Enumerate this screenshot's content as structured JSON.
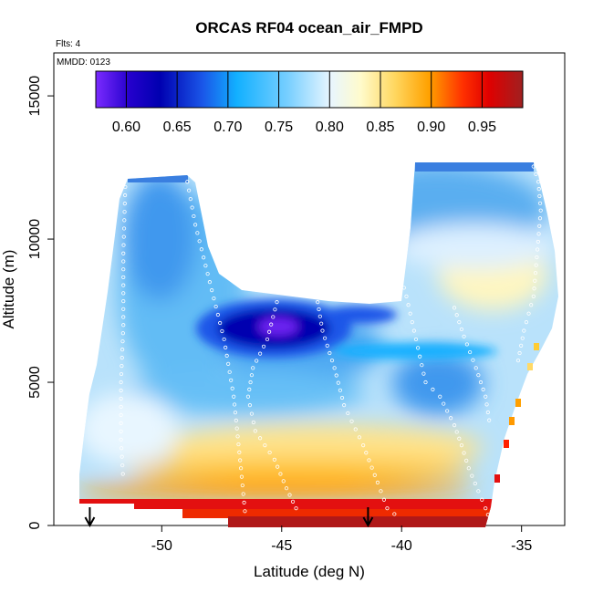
{
  "chart_data": {
    "type": "heatmap",
    "title": "ORCAS RF04 ocean_air_FMPD",
    "annotations": [
      "Flts: 4",
      "MMDD: 0123"
    ],
    "xlabel": "Latitude (deg N)",
    "ylabel": "Altitude (m)",
    "xlim": [
      -54.5,
      -33.2
    ],
    "ylim": [
      0,
      16500
    ],
    "x_ticks": [
      -50,
      -45,
      -40,
      -35
    ],
    "y_ticks": [
      0,
      5000,
      10000,
      15000
    ],
    "colorbar": {
      "range": [
        0.57,
        0.99
      ],
      "ticks": [
        0.6,
        0.65,
        0.7,
        0.75,
        0.8,
        0.85,
        0.9,
        0.95
      ],
      "tick_labels": [
        "0.60",
        "0.65",
        "0.70",
        "0.75",
        "0.80",
        "0.85",
        "0.90",
        "0.95"
      ]
    },
    "arrows_lat": [
      -53.0,
      -41.4
    ],
    "flight_track_profiles": [
      {
        "lat": [
          -51.5,
          -51.6,
          -51.6,
          -51.7,
          -51.7,
          -51.6
        ],
        "alt": [
          12400,
          9500,
          7000,
          5000,
          3000,
          1500
        ]
      },
      {
        "lat": [
          -49.0,
          -48.6,
          -48.0,
          -47.4,
          -47.0,
          -46.7,
          -46.5
        ],
        "alt": [
          12300,
          10500,
          8500,
          6500,
          4500,
          2000,
          200
        ]
      },
      {
        "lat": [
          -45.2,
          -45.6,
          -46.2,
          -46.4,
          -46.1,
          -45.3,
          -44.8,
          -44.4,
          -44.6
        ],
        "alt": [
          7800,
          6500,
          5500,
          4500,
          3300,
          2300,
          1300,
          600,
          300
        ]
      },
      {
        "lat": [
          -43.5,
          -43.3,
          -42.8,
          -42.4,
          -41.6,
          -41.0,
          -40.6,
          -40.0
        ],
        "alt": [
          7800,
          6800,
          5500,
          4200,
          2800,
          1500,
          600,
          200
        ]
      },
      {
        "lat": [
          -40.5,
          -40.6,
          -40.3,
          -39.8,
          -39.4,
          -39.0,
          -38.4,
          -37.8,
          -37.5,
          -37.2,
          -36.8,
          -36.5,
          -36.3
        ],
        "alt": [
          12600,
          11000,
          9500,
          8000,
          6500,
          5000,
          4500,
          3500,
          2800,
          2000,
          1200,
          600,
          150
        ]
      },
      {
        "lat": [
          -37.8,
          -37.4,
          -36.9,
          -36.5,
          -36.3
        ],
        "alt": [
          7600,
          6600,
          5500,
          4500,
          3400
        ]
      },
      {
        "lat": [
          -34.6,
          -34.3,
          -34.2,
          -34.5,
          -34.9,
          -35.2
        ],
        "alt": [
          12800,
          12000,
          11000,
          8000,
          6800,
          5500
        ]
      }
    ]
  }
}
